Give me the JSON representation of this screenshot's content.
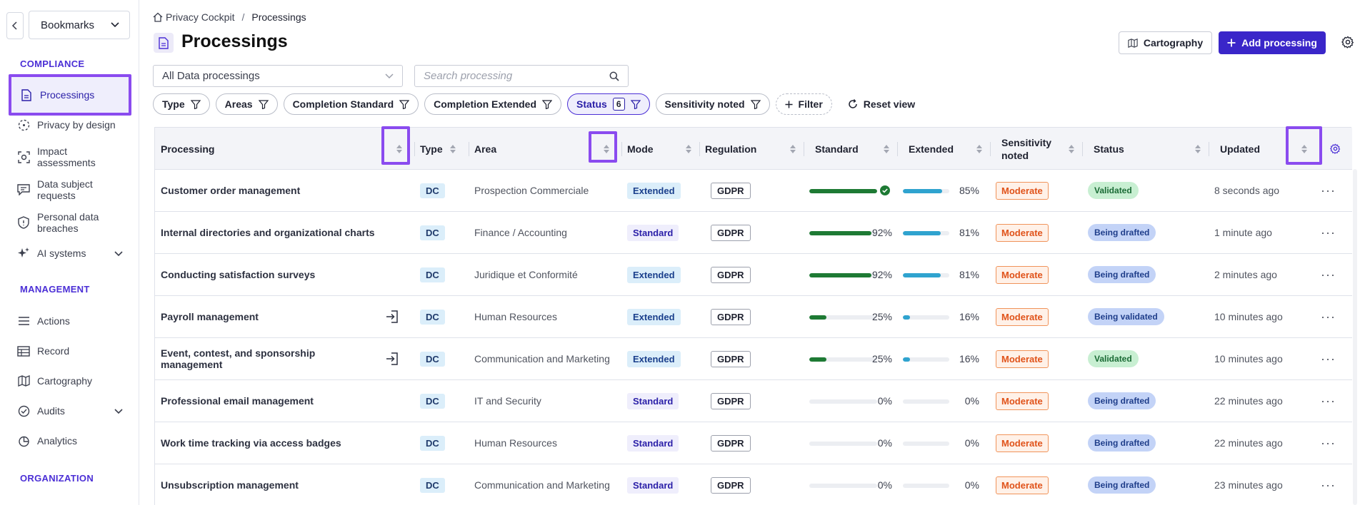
{
  "sidebar": {
    "bookmarks_label": "Bookmarks",
    "sections": {
      "compliance": "COMPLIANCE",
      "management": "MANAGEMENT",
      "organization": "ORGANIZATION"
    },
    "items": [
      {
        "label": "Processings",
        "icon": "document-icon",
        "active": true
      },
      {
        "label": "Privacy by design",
        "icon": "dashed-circle-icon"
      },
      {
        "label": "Impact assessments",
        "icon": "target-icon"
      },
      {
        "label": "Data subject requests",
        "icon": "chat-icon"
      },
      {
        "label": "Personal data breaches",
        "icon": "shield-icon"
      },
      {
        "label": "AI systems",
        "icon": "sparkle-icon",
        "expandable": true
      },
      {
        "label": "Actions",
        "icon": "list-icon"
      },
      {
        "label": "Record",
        "icon": "table-icon"
      },
      {
        "label": "Cartography",
        "icon": "map-icon"
      },
      {
        "label": "Audits",
        "icon": "check-circle-icon",
        "expandable": true
      },
      {
        "label": "Analytics",
        "icon": "pie-icon"
      }
    ]
  },
  "breadcrumb": {
    "root": "Privacy Cockpit",
    "separator": "/",
    "current": "Processings"
  },
  "header": {
    "title": "Processings",
    "cartography_label": "Cartography",
    "add_label": "Add processing"
  },
  "filters": {
    "view_select": "All Data processings",
    "search_placeholder": "Search processing",
    "chips": {
      "type": "Type",
      "areas": "Areas",
      "completion_standard": "Completion Standard",
      "completion_extended": "Completion Extended",
      "status": "Status",
      "status_count": "6",
      "sensitivity": "Sensitivity noted",
      "filter": "Filter"
    },
    "reset_label": "Reset view"
  },
  "table": {
    "columns": {
      "processing": "Processing",
      "type": "Type",
      "area": "Area",
      "mode": "Mode",
      "regulation": "Regulation",
      "standard": "Standard",
      "extended": "Extended",
      "sensitivity_line1": "Sensitivity",
      "sensitivity_line2": "noted",
      "status": "Status",
      "updated": "Updated"
    },
    "colors": {
      "standard_bar": "#1e7a34",
      "extended_bar": "#2fa3cf",
      "accent": "#3a26c9"
    },
    "rows": [
      {
        "name": "Customer order management",
        "login_icon": false,
        "type": "DC",
        "area": "Prospection Commerciale",
        "mode": "Extended",
        "regulation": "GDPR",
        "standard": 100,
        "standard_complete": true,
        "standard_label": "",
        "extended": 85,
        "extended_label": "85%",
        "sensitivity": "Moderate",
        "status": "Validated",
        "status_kind": "validated",
        "updated": "8 seconds ago",
        "more": "···"
      },
      {
        "name": "Internal directories and organizational charts",
        "login_icon": false,
        "type": "DC",
        "area": "Finance / Accounting",
        "mode": "Standard",
        "regulation": "GDPR",
        "standard": 92,
        "standard_complete": false,
        "standard_label": "92%",
        "extended": 81,
        "extended_label": "81%",
        "sensitivity": "Moderate",
        "status": "Being drafted",
        "status_kind": "drafted",
        "updated": "1 minute ago",
        "more": "···"
      },
      {
        "name": "Conducting satisfaction surveys",
        "login_icon": false,
        "type": "DC",
        "area": "Juridique et Conformité",
        "mode": "Extended",
        "regulation": "GDPR",
        "standard": 92,
        "standard_complete": false,
        "standard_label": "92%",
        "extended": 81,
        "extended_label": "81%",
        "sensitivity": "Moderate",
        "status": "Being drafted",
        "status_kind": "drafted",
        "updated": "2 minutes ago",
        "more": "···"
      },
      {
        "name": "Payroll management",
        "login_icon": true,
        "type": "DC",
        "area": "Human Resources",
        "mode": "Extended",
        "regulation": "GDPR",
        "standard": 25,
        "standard_complete": false,
        "standard_label": "25%",
        "extended": 16,
        "extended_label": "16%",
        "sensitivity": "Moderate",
        "status": "Being validated",
        "status_kind": "validating",
        "updated": "10 minutes ago",
        "more": "···"
      },
      {
        "name": "Event, contest, and sponsorship management",
        "login_icon": true,
        "type": "DC",
        "area": "Communication and Marketing",
        "mode": "Extended",
        "regulation": "GDPR",
        "standard": 25,
        "standard_complete": false,
        "standard_label": "25%",
        "extended": 16,
        "extended_label": "16%",
        "sensitivity": "Moderate",
        "status": "Validated",
        "status_kind": "validated",
        "updated": "10 minutes ago",
        "more": "···"
      },
      {
        "name": "Professional email management",
        "login_icon": false,
        "type": "DC",
        "area": "IT and Security",
        "mode": "Standard",
        "regulation": "GDPR",
        "standard": 0,
        "standard_complete": false,
        "standard_label": "0%",
        "extended": 0,
        "extended_label": "0%",
        "sensitivity": "Moderate",
        "status": "Being drafted",
        "status_kind": "drafted",
        "updated": "22 minutes ago",
        "more": "···"
      },
      {
        "name": "Work time tracking via access badges",
        "login_icon": false,
        "type": "DC",
        "area": "Human Resources",
        "mode": "Standard",
        "regulation": "GDPR",
        "standard": 0,
        "standard_complete": false,
        "standard_label": "0%",
        "extended": 0,
        "extended_label": "0%",
        "sensitivity": "Moderate",
        "status": "Being drafted",
        "status_kind": "drafted",
        "updated": "22 minutes ago",
        "more": "···"
      },
      {
        "name": "Unsubscription management",
        "login_icon": false,
        "type": "DC",
        "area": "Communication and Marketing",
        "mode": "Standard",
        "regulation": "GDPR",
        "standard": 0,
        "standard_complete": false,
        "standard_label": "0%",
        "extended": 0,
        "extended_label": "0%",
        "sensitivity": "Moderate",
        "status": "Being drafted",
        "status_kind": "drafted",
        "updated": "23 minutes ago",
        "more": "···"
      }
    ]
  }
}
